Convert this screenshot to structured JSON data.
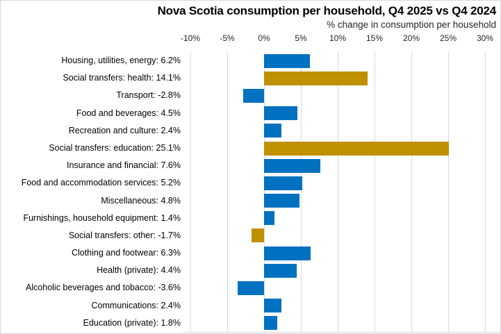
{
  "chart_data": {
    "type": "bar",
    "orientation": "horizontal",
    "title": "Nova Scotia consumption per household, Q4 2025 vs Q4 2024",
    "subtitle": "% change in consumption per household",
    "x_axis": {
      "min": -10,
      "max": 30,
      "tick_values": [
        -10,
        -5,
        0,
        5,
        10,
        15,
        20,
        25,
        30
      ],
      "tick_labels": [
        "-10%",
        "-5%",
        "0%",
        "5%",
        "10%",
        "15%",
        "20%",
        "25%",
        "30%"
      ],
      "grid": true
    },
    "legend": "none",
    "colors": {
      "regular": "#0070C0",
      "social_transfer": "#BF9000",
      "gridline": "#D9D9D9",
      "axis_line": "#D9D9D9"
    },
    "items": [
      {
        "label": "Housing, utilities, energy",
        "value": 6.2,
        "display": "Housing, utilities, energy: 6.2%",
        "group": "regular"
      },
      {
        "label": "Social transfers: health",
        "value": 14.1,
        "display": "Social transfers: health: 14.1%",
        "group": "social_transfer"
      },
      {
        "label": "Transport",
        "value": -2.8,
        "display": "Transport: -2.8%",
        "group": "regular"
      },
      {
        "label": "Food and beverages",
        "value": 4.5,
        "display": "Food and beverages: 4.5%",
        "group": "regular"
      },
      {
        "label": "Recreation and culture",
        "value": 2.4,
        "display": "Recreation and culture: 2.4%",
        "group": "regular"
      },
      {
        "label": "Social transfers: education",
        "value": 25.1,
        "display": "Social transfers: education: 25.1%",
        "group": "social_transfer"
      },
      {
        "label": "Insurance and financial",
        "value": 7.6,
        "display": "Insurance and financial: 7.6%",
        "group": "regular"
      },
      {
        "label": "Food and accommodation services",
        "value": 5.2,
        "display": "Food and accommodation services: 5.2%",
        "group": "regular"
      },
      {
        "label": "Miscellaneous",
        "value": 4.8,
        "display": "Miscellaneous: 4.8%",
        "group": "regular"
      },
      {
        "label": "Furnishings, household equipment",
        "value": 1.4,
        "display": "Furnishings, household equipment: 1.4%",
        "group": "regular"
      },
      {
        "label": "Social transfers: other",
        "value": -1.7,
        "display": "Social transfers: other: -1.7%",
        "group": "social_transfer"
      },
      {
        "label": "Clothing and footwear",
        "value": 6.3,
        "display": "Clothing and footwear: 6.3%",
        "group": "regular"
      },
      {
        "label": "Health (private)",
        "value": 4.4,
        "display": "Health (private): 4.4%",
        "group": "regular"
      },
      {
        "label": "Alcoholic beverages and tobacco",
        "value": -3.6,
        "display": "Alcoholic beverages and tobacco: -3.6%",
        "group": "regular"
      },
      {
        "label": "Communications",
        "value": 2.4,
        "display": "Communications: 2.4%",
        "group": "regular"
      },
      {
        "label": "Education (private)",
        "value": 1.8,
        "display": "Education (private): 1.8%",
        "group": "regular"
      }
    ]
  }
}
